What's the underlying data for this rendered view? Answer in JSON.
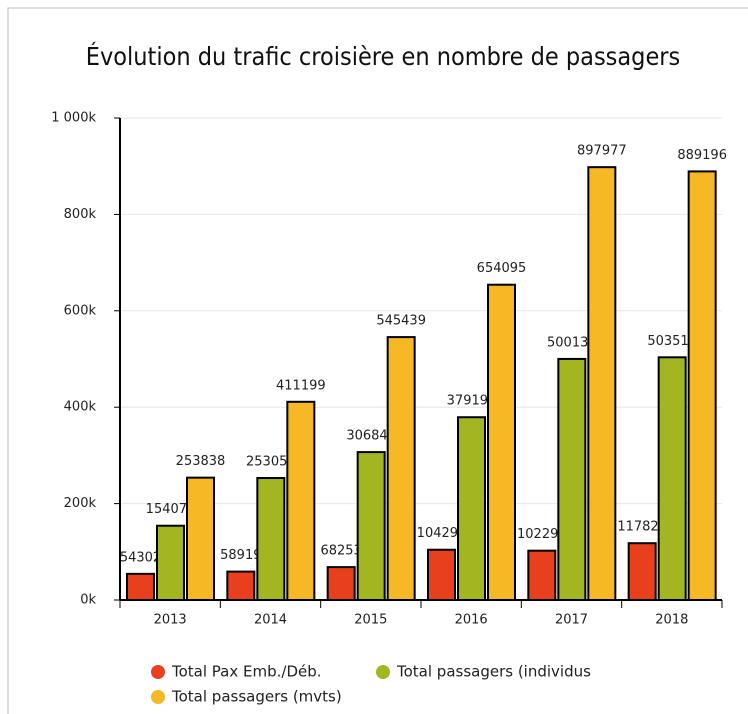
{
  "chart_data": {
    "type": "bar",
    "title": "Évolution du trafic croisière en nombre de passagers",
    "categories": [
      "2013",
      "2014",
      "2015",
      "2016",
      "2017",
      "2018"
    ],
    "series": [
      {
        "name": "Total Pax Emb./Déb.",
        "color": "#e8401c",
        "values": [
          54302,
          58919,
          68253,
          104293,
          102297,
          117824
        ]
      },
      {
        "name": "Total passagers (individus",
        "color": "#a3b520",
        "values": [
          154070,
          253059,
          306846,
          379194,
          500137,
          503510
        ]
      },
      {
        "name": "Total passagers (mvts)",
        "color": "#f7b825",
        "values": [
          253838,
          411199,
          545439,
          654095,
          897977,
          889196
        ]
      }
    ],
    "ylim": [
      0,
      1000000
    ],
    "yticks": [
      {
        "value": 0,
        "label": "0k"
      },
      {
        "value": 200000,
        "label": "200k"
      },
      {
        "value": 400000,
        "label": "400k"
      },
      {
        "value": 600000,
        "label": "600k"
      },
      {
        "value": 800000,
        "label": "800k"
      },
      {
        "value": 1000000,
        "label": "1 000k"
      }
    ],
    "grid": true
  }
}
